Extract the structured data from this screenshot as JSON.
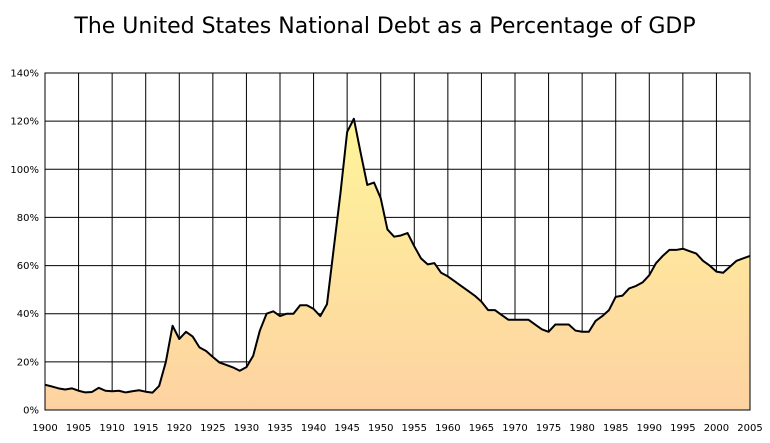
{
  "chart_data": {
    "type": "area",
    "title": "The United States National Debt as a Percentage of GDP",
    "xlabel": "",
    "ylabel": "",
    "xlim": [
      1900,
      2005
    ],
    "ylim": [
      0,
      140
    ],
    "grid": true,
    "legend": "none",
    "x_ticks": [
      "1900",
      "1905",
      "1910",
      "1915",
      "1920",
      "1925",
      "1930",
      "1935",
      "1940",
      "1945",
      "1950",
      "1955",
      "1960",
      "1965",
      "1970",
      "1975",
      "1980",
      "1985",
      "1990",
      "1995",
      "2000",
      "2005"
    ],
    "y_ticks": [
      "0%",
      "20%",
      "40%",
      "60%",
      "80%",
      "100%",
      "120%",
      "140%"
    ],
    "colors": {
      "line": "#000000",
      "fill_top": "#fff59a",
      "fill_bottom": "#fdd2a2",
      "grid": "#000000"
    },
    "series": [
      {
        "x": [
          1900,
          1901,
          1902,
          1903,
          1904,
          1905,
          1906,
          1907,
          1908,
          1909,
          1910,
          1911,
          1912,
          1913,
          1914,
          1915,
          1916,
          1917,
          1918,
          1919,
          1920,
          1921,
          1922,
          1923,
          1924,
          1925,
          1926,
          1927,
          1928,
          1929,
          1930,
          1931,
          1932,
          1933,
          1934,
          1935,
          1936,
          1937,
          1938,
          1939,
          1940,
          1941,
          1942,
          1943,
          1944,
          1945,
          1946,
          1947,
          1948,
          1949,
          1950,
          1951,
          1952,
          1953,
          1954,
          1955,
          1956,
          1957,
          1958,
          1959,
          1960,
          1961,
          1962,
          1963,
          1964,
          1965,
          1966,
          1967,
          1968,
          1969,
          1970,
          1971,
          1972,
          1973,
          1974,
          1975,
          1976,
          1977,
          1978,
          1979,
          1980,
          1981,
          1982,
          1983,
          1984,
          1985,
          1986,
          1987,
          1988,
          1989,
          1990,
          1991,
          1992,
          1993,
          1994,
          1995,
          1996,
          1997,
          1998,
          1999,
          2000,
          2001,
          2002,
          2003,
          2004,
          2005
        ],
        "values": [
          10.5,
          9.8,
          9.0,
          8.5,
          9.0,
          8.0,
          7.3,
          7.5,
          9.2,
          8.0,
          7.8,
          8.0,
          7.3,
          7.8,
          8.2,
          7.6,
          7.2,
          10.0,
          20.0,
          35.0,
          29.5,
          32.5,
          30.5,
          26.0,
          24.5,
          22.0,
          19.7,
          18.7,
          17.7,
          16.3,
          17.8,
          22.5,
          33.0,
          40.0,
          41.0,
          39.0,
          40.0,
          40.0,
          43.5,
          43.5,
          42.0,
          39.0,
          44.0,
          67.0,
          90.0,
          115.5,
          121.0,
          107.0,
          93.5,
          94.5,
          88.0,
          75.0,
          72.0,
          72.5,
          73.5,
          68.0,
          63.0,
          60.5,
          61.0,
          57.0,
          55.5,
          53.5,
          51.5,
          49.5,
          47.5,
          45.0,
          41.5,
          41.5,
          39.5,
          37.5,
          37.5,
          37.5,
          37.5,
          35.5,
          33.5,
          32.5,
          35.5,
          35.5,
          35.5,
          33.0,
          32.5,
          32.5,
          37.0,
          39.0,
          41.5,
          47.0,
          47.5,
          50.5,
          51.5,
          53.0,
          56.0,
          61.0,
          64.0,
          66.5,
          66.5,
          67.0,
          66.0,
          65.0,
          62.0,
          60.0,
          57.5,
          57.0,
          59.5,
          62.0,
          63.0,
          64.0
        ]
      }
    ]
  }
}
